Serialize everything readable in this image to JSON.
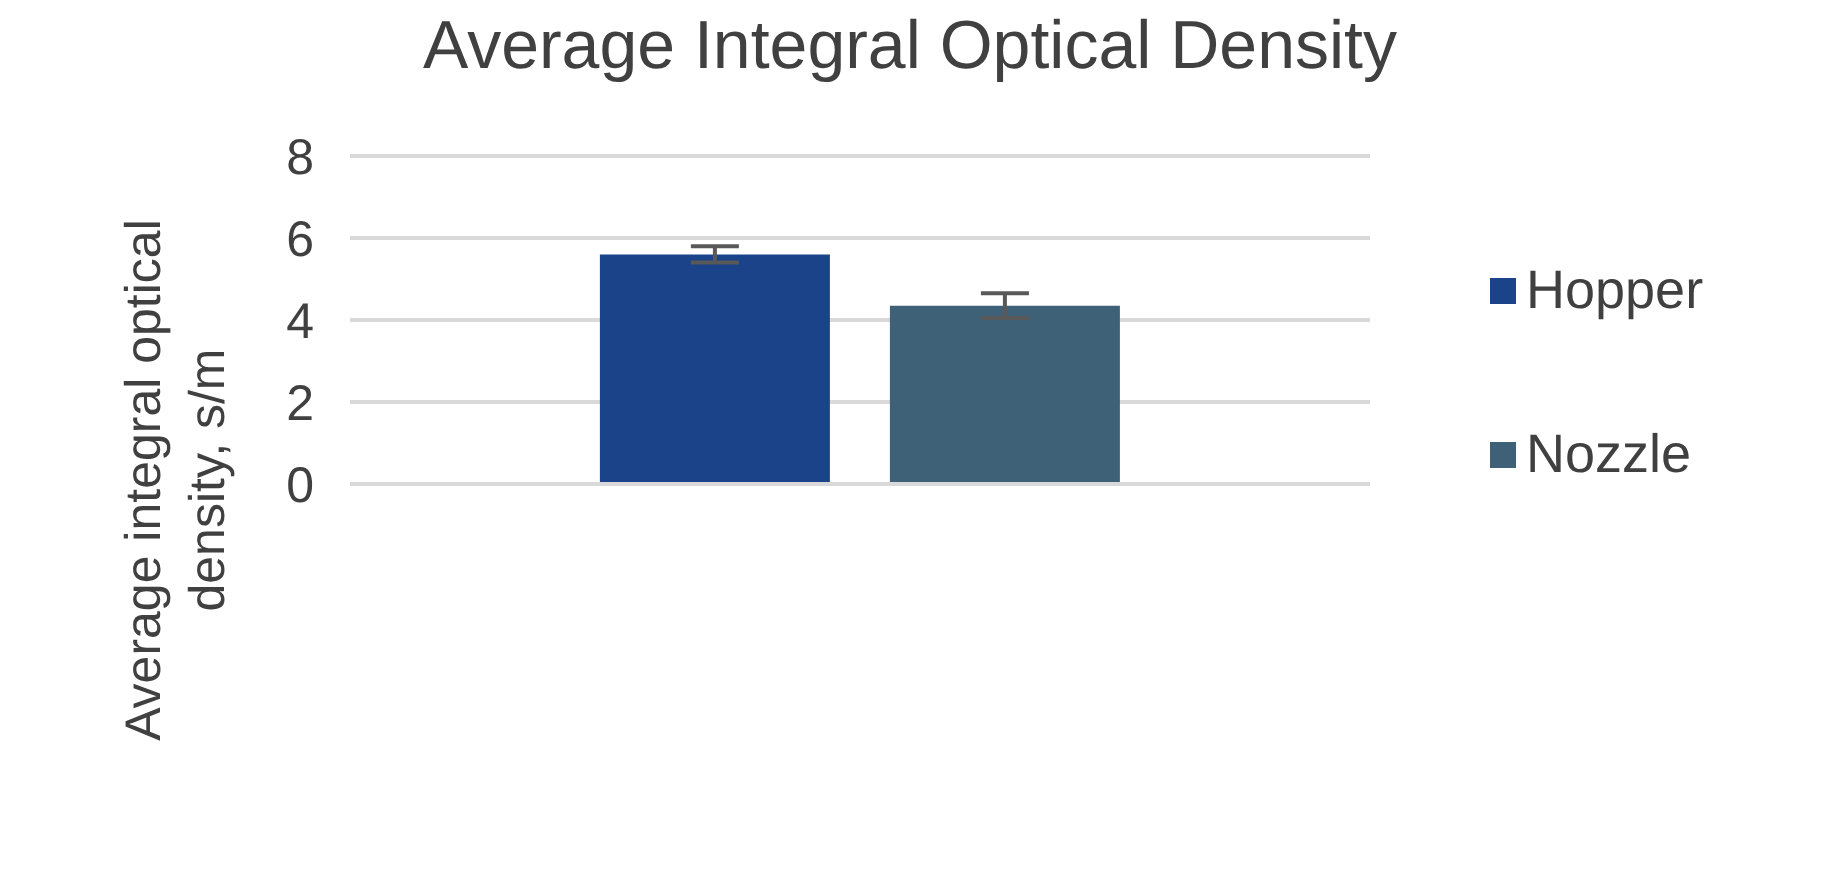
{
  "chart_data": {
    "type": "bar",
    "title": "Average Integral Optical Density",
    "ylabel": "Average integral optical density, s/m",
    "categories": [
      null
    ],
    "series": [
      {
        "name": "Hopper",
        "color": "#1b4389",
        "values": [
          5.6
        ],
        "errors": [
          0.2
        ]
      },
      {
        "name": "Nozzle",
        "color": "#3e6178",
        "values": [
          4.35
        ],
        "errors": [
          0.3
        ]
      }
    ],
    "ylim": [
      0,
      8
    ],
    "yticks": [
      0,
      2,
      4,
      6,
      8
    ],
    "grid": "y",
    "legend": "right"
  }
}
